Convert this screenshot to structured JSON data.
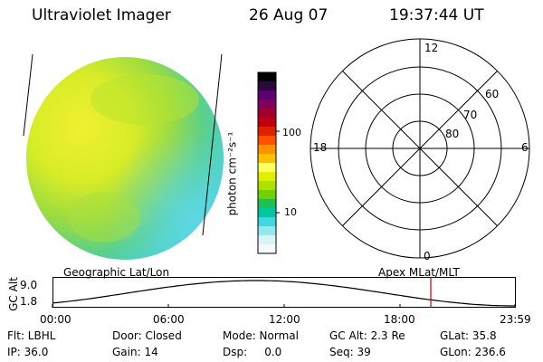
{
  "header": {
    "title": "Ultraviolet Imager",
    "date": "26 Aug 07",
    "time": "19:37:44 UT"
  },
  "colorbar": {
    "unit_label": "photon cm⁻²s⁻¹",
    "ticks": [
      "100",
      "10"
    ],
    "scale": "log",
    "colors": [
      "#000000",
      "#2a0a3a",
      "#5a0070",
      "#800060",
      "#a00030",
      "#c00010",
      "#e02000",
      "#ff5000",
      "#ff9000",
      "#ffc000",
      "#ffff60",
      "#e0f000",
      "#b0e000",
      "#70d000",
      "#20c050",
      "#00c8a0",
      "#40d8e0",
      "#90e8f0",
      "#d8f4f8",
      "#f4fafc"
    ]
  },
  "polar_plot": {
    "mlt_labels": {
      "top": "12",
      "left": "18",
      "right": "6",
      "bottom": "0"
    },
    "lat_labels": [
      "60",
      "70",
      "80"
    ]
  },
  "altitude_panel": {
    "left_title": "Geographic Lat/Lon",
    "right_title": "Apex MLat/MLT",
    "ylabel": "GC Alt",
    "yticks": [
      "9.0",
      "1.8"
    ],
    "xticks": [
      "00:00",
      "06:00",
      "12:00",
      "18:00",
      "23:59"
    ],
    "current_time_marker_color": "#c00000"
  },
  "info": {
    "row1": {
      "filter": "Flt: LBHL",
      "door": "Door: Closed",
      "mode": "Mode: Normal",
      "gc_alt": "GC Alt: 2.3 Re",
      "glat": "GLat:  35.8"
    },
    "row2": {
      "ip": "IP: 36.0",
      "gain": "Gain: 14",
      "dsp": "Dsp:     0.0",
      "seq": "Seq: 39",
      "glon": "GLon: 236.6"
    }
  }
}
